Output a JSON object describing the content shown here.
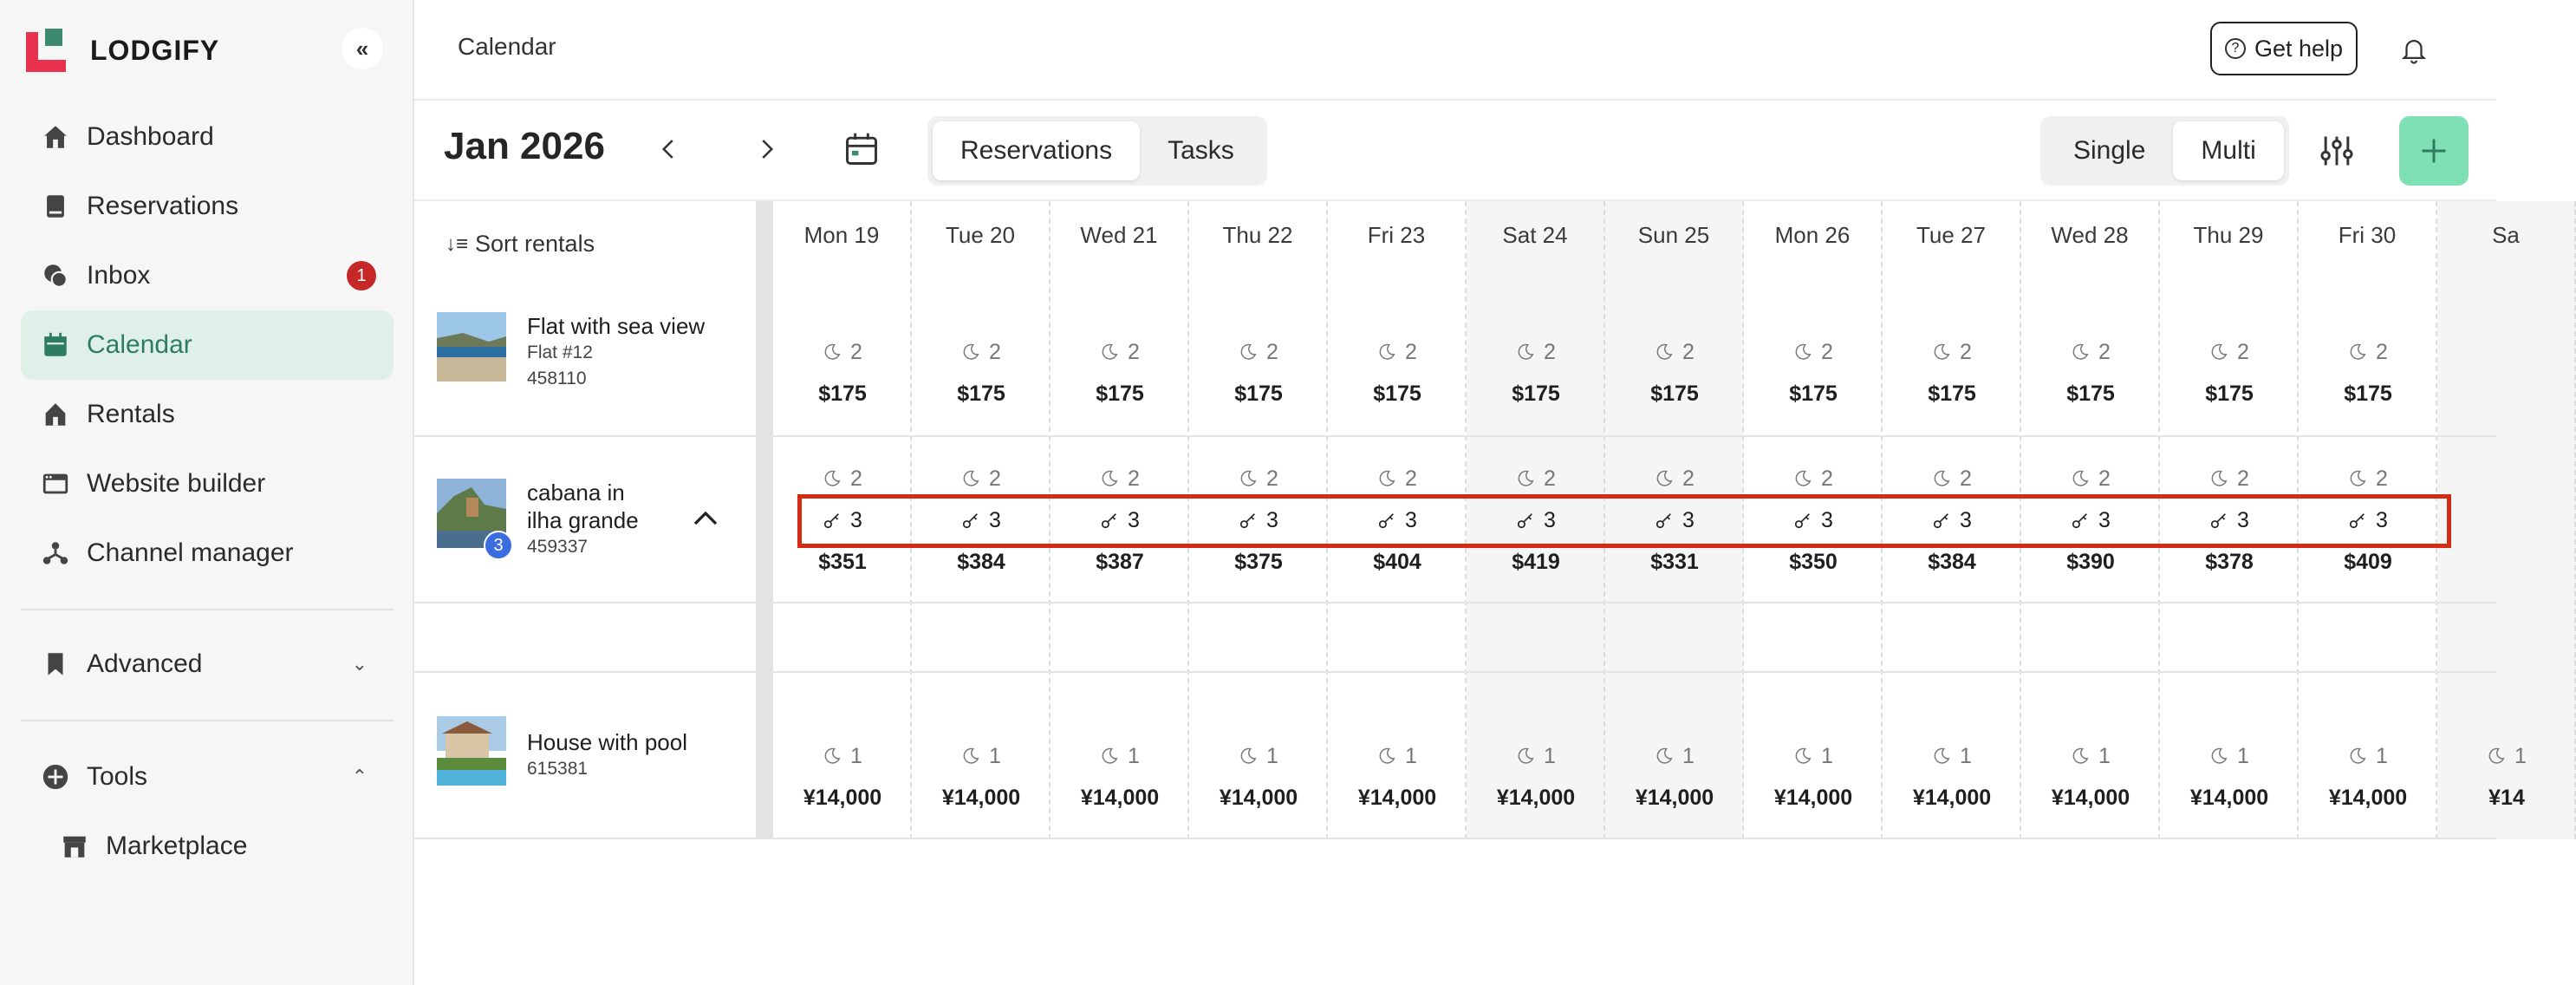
{
  "brand": {
    "name": "LODGIFY",
    "colors": {
      "brand_red": "#e8304f",
      "brand_green": "#3b8a6e",
      "accent": "#2f7d5f",
      "add_button": "#7ee0b4",
      "highlight": "#d42b12"
    }
  },
  "sidebar": {
    "items": [
      {
        "label": "Dashboard",
        "icon": "home-icon"
      },
      {
        "label": "Reservations",
        "icon": "book-icon"
      },
      {
        "label": "Inbox",
        "icon": "chat-icon",
        "badge": "1"
      },
      {
        "label": "Calendar",
        "icon": "calendar-icon",
        "active": true
      },
      {
        "label": "Rentals",
        "icon": "house-icon"
      },
      {
        "label": "Website builder",
        "icon": "browser-icon"
      },
      {
        "label": "Channel manager",
        "icon": "network-icon"
      }
    ],
    "advanced": {
      "label": "Advanced",
      "icon": "bookmark-icon"
    },
    "tools": {
      "label": "Tools",
      "icon": "plus-circle-icon",
      "children": [
        {
          "label": "Marketplace",
          "icon": "store-icon"
        }
      ]
    }
  },
  "topbar": {
    "breadcrumb": "Calendar",
    "help_label": "Get help"
  },
  "toolbar": {
    "month": "Jan 2026",
    "view_tabs": [
      {
        "label": "Reservations",
        "selected": true
      },
      {
        "label": "Tasks",
        "selected": false
      }
    ],
    "mode_tabs": [
      {
        "label": "Single",
        "selected": false
      },
      {
        "label": "Multi",
        "selected": true
      }
    ]
  },
  "grid": {
    "sort_label": "Sort rentals",
    "days": [
      "Mon 19",
      "Tue 20",
      "Wed 21",
      "Thu 22",
      "Fri 23",
      "Sat 24",
      "Sun 25",
      "Mon 26",
      "Tue 27",
      "Wed 28",
      "Thu 29",
      "Fri 30",
      "Sa"
    ],
    "weekend_flags": [
      false,
      false,
      false,
      false,
      false,
      true,
      true,
      false,
      false,
      false,
      false,
      false,
      true
    ],
    "rentals": [
      {
        "name": "Flat with sea view",
        "unit": "Flat #12",
        "id": "458110",
        "min_stay": [
          "2",
          "2",
          "2",
          "2",
          "2",
          "2",
          "2",
          "2",
          "2",
          "2",
          "2",
          "2"
        ],
        "prices": [
          "$175",
          "$175",
          "$175",
          "$175",
          "$175",
          "$175",
          "$175",
          "$175",
          "$175",
          "$175",
          "$175",
          "$175"
        ]
      },
      {
        "name_line1": "cabana in",
        "name_line2": "ilha grande",
        "id": "459337",
        "room_count": "3",
        "min_stay": [
          "2",
          "2",
          "2",
          "2",
          "2",
          "2",
          "2",
          "2",
          "2",
          "2",
          "2",
          "2"
        ],
        "units": [
          "3",
          "3",
          "3",
          "3",
          "3",
          "3",
          "3",
          "3",
          "3",
          "3",
          "3",
          "3"
        ],
        "prices": [
          "$351",
          "$384",
          "$387",
          "$375",
          "$404",
          "$419",
          "$331",
          "$350",
          "$384",
          "$390",
          "$378",
          "$409"
        ]
      },
      {
        "name": "House with pool",
        "id": "615381",
        "min_stay": [
          "1",
          "1",
          "1",
          "1",
          "1",
          "1",
          "1",
          "1",
          "1",
          "1",
          "1",
          "1",
          "1"
        ],
        "prices": [
          "¥14,000",
          "¥14,000",
          "¥14,000",
          "¥14,000",
          "¥14,000",
          "¥14,000",
          "¥14,000",
          "¥14,000",
          "¥14,000",
          "¥14,000",
          "¥14,000",
          "¥14,000",
          "¥14"
        ]
      }
    ]
  }
}
